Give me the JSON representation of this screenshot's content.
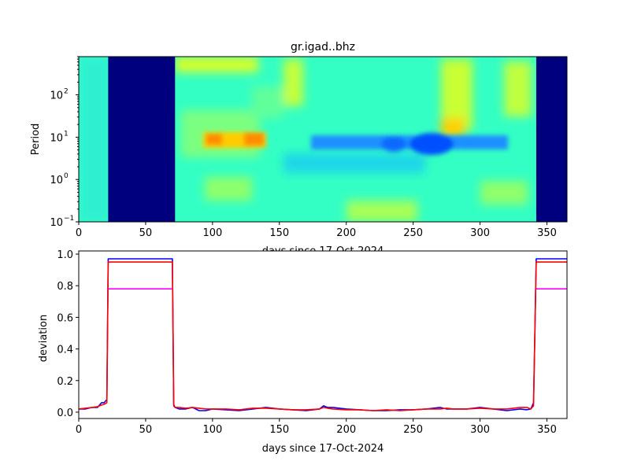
{
  "chart_data": [
    {
      "type": "heatmap",
      "title": "gr.igad..bhz",
      "xlabel": "days since 17-Oct-2024",
      "ylabel": "Period",
      "xlim": [
        0,
        365
      ],
      "ylim": [
        0.1,
        800
      ],
      "yscale": "log",
      "x_ticks": [
        "0",
        "50",
        "100",
        "150",
        "200",
        "250",
        "300",
        "350"
      ],
      "y_ticks": [
        "10",
        "10",
        "10",
        "10"
      ],
      "y_tick_exponents": [
        "−1",
        "0",
        "1",
        "2"
      ],
      "colormap": "jet",
      "gaps_days": [
        [
          22,
          72
        ],
        [
          342,
          365
        ]
      ],
      "features": [
        {
          "label": "high-energy band near period 10",
          "x": [
            98,
            138
          ],
          "y": [
            6,
            18
          ]
        },
        {
          "label": "low-energy band near period 7",
          "x": [
            180,
            320
          ],
          "y": [
            4,
            12
          ]
        }
      ]
    },
    {
      "type": "line",
      "xlabel": "days since 17-Oct-2024",
      "ylabel": "deviation",
      "xlim": [
        0,
        365
      ],
      "ylim": [
        -0.04,
        1.02
      ],
      "x_ticks": [
        "0",
        "50",
        "100",
        "150",
        "200",
        "250",
        "300",
        "350"
      ],
      "y_ticks": [
        "0.0",
        "0.2",
        "0.4",
        "0.6",
        "0.8",
        "1.0"
      ],
      "series": [
        {
          "color": "#0000ff",
          "x": [
            0,
            5,
            10,
            14,
            17,
            19,
            21,
            22,
            70,
            71,
            72,
            75,
            80,
            85,
            90,
            95,
            100,
            110,
            120,
            130,
            140,
            150,
            160,
            170,
            180,
            183,
            186,
            190,
            200,
            210,
            220,
            230,
            240,
            250,
            260,
            270,
            275,
            280,
            290,
            300,
            310,
            320,
            330,
            335,
            338,
            340,
            341,
            342,
            365
          ],
          "y": [
            0.02,
            0.02,
            0.03,
            0.03,
            0.06,
            0.06,
            0.08,
            0.97,
            0.97,
            0.04,
            0.03,
            0.02,
            0.02,
            0.03,
            0.01,
            0.01,
            0.02,
            0.015,
            0.01,
            0.02,
            0.03,
            0.02,
            0.015,
            0.01,
            0.02,
            0.04,
            0.03,
            0.03,
            0.02,
            0.015,
            0.01,
            0.01,
            0.015,
            0.015,
            0.02,
            0.03,
            0.02,
            0.02,
            0.02,
            0.03,
            0.02,
            0.01,
            0.02,
            0.015,
            0.02,
            0.06,
            0.5,
            0.97,
            0.97
          ]
        },
        {
          "color": "#ff0000",
          "x": [
            0,
            5,
            10,
            14,
            17,
            19,
            21,
            22,
            70,
            71,
            72,
            75,
            80,
            85,
            90,
            95,
            100,
            110,
            120,
            130,
            140,
            150,
            160,
            170,
            180,
            183,
            186,
            190,
            200,
            210,
            220,
            230,
            240,
            250,
            260,
            270,
            275,
            280,
            290,
            300,
            310,
            320,
            330,
            335,
            338,
            340,
            341,
            342,
            365
          ],
          "y": [
            0.02,
            0.025,
            0.03,
            0.035,
            0.045,
            0.05,
            0.06,
            0.95,
            0.95,
            0.05,
            0.03,
            0.03,
            0.025,
            0.03,
            0.025,
            0.02,
            0.02,
            0.02,
            0.015,
            0.025,
            0.025,
            0.02,
            0.015,
            0.015,
            0.02,
            0.03,
            0.025,
            0.02,
            0.015,
            0.015,
            0.01,
            0.015,
            0.01,
            0.015,
            0.02,
            0.02,
            0.025,
            0.02,
            0.02,
            0.025,
            0.02,
            0.02,
            0.03,
            0.03,
            0.02,
            0.04,
            0.5,
            0.95,
            0.95
          ]
        },
        {
          "color": "#ff00ff",
          "x": [
            22,
            70
          ],
          "y": [
            0.78,
            0.78
          ]
        },
        {
          "color": "#ff00ff",
          "x": [
            342,
            365
          ],
          "y": [
            0.78,
            0.78
          ]
        }
      ]
    }
  ]
}
